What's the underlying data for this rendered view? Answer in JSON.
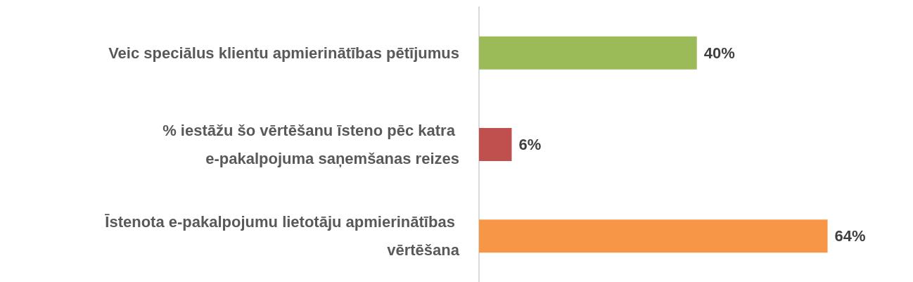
{
  "chart_data": {
    "type": "bar",
    "orientation": "horizontal",
    "categories": [
      "Veic speciālus klientu apmierinātības pētījumus",
      "% iestāžu šo vērtēšanu īsteno pēc katra e-pakalpojuma saņemšanas reizes",
      "Īstenota e-pakalpojumu lietotāju apmierinātības vērtēšana"
    ],
    "values": [
      40,
      6,
      64
    ],
    "value_labels": [
      "40%",
      "6%",
      "64%"
    ],
    "colors": [
      "#9bbb59",
      "#c0504d",
      "#f79646"
    ]
  }
}
